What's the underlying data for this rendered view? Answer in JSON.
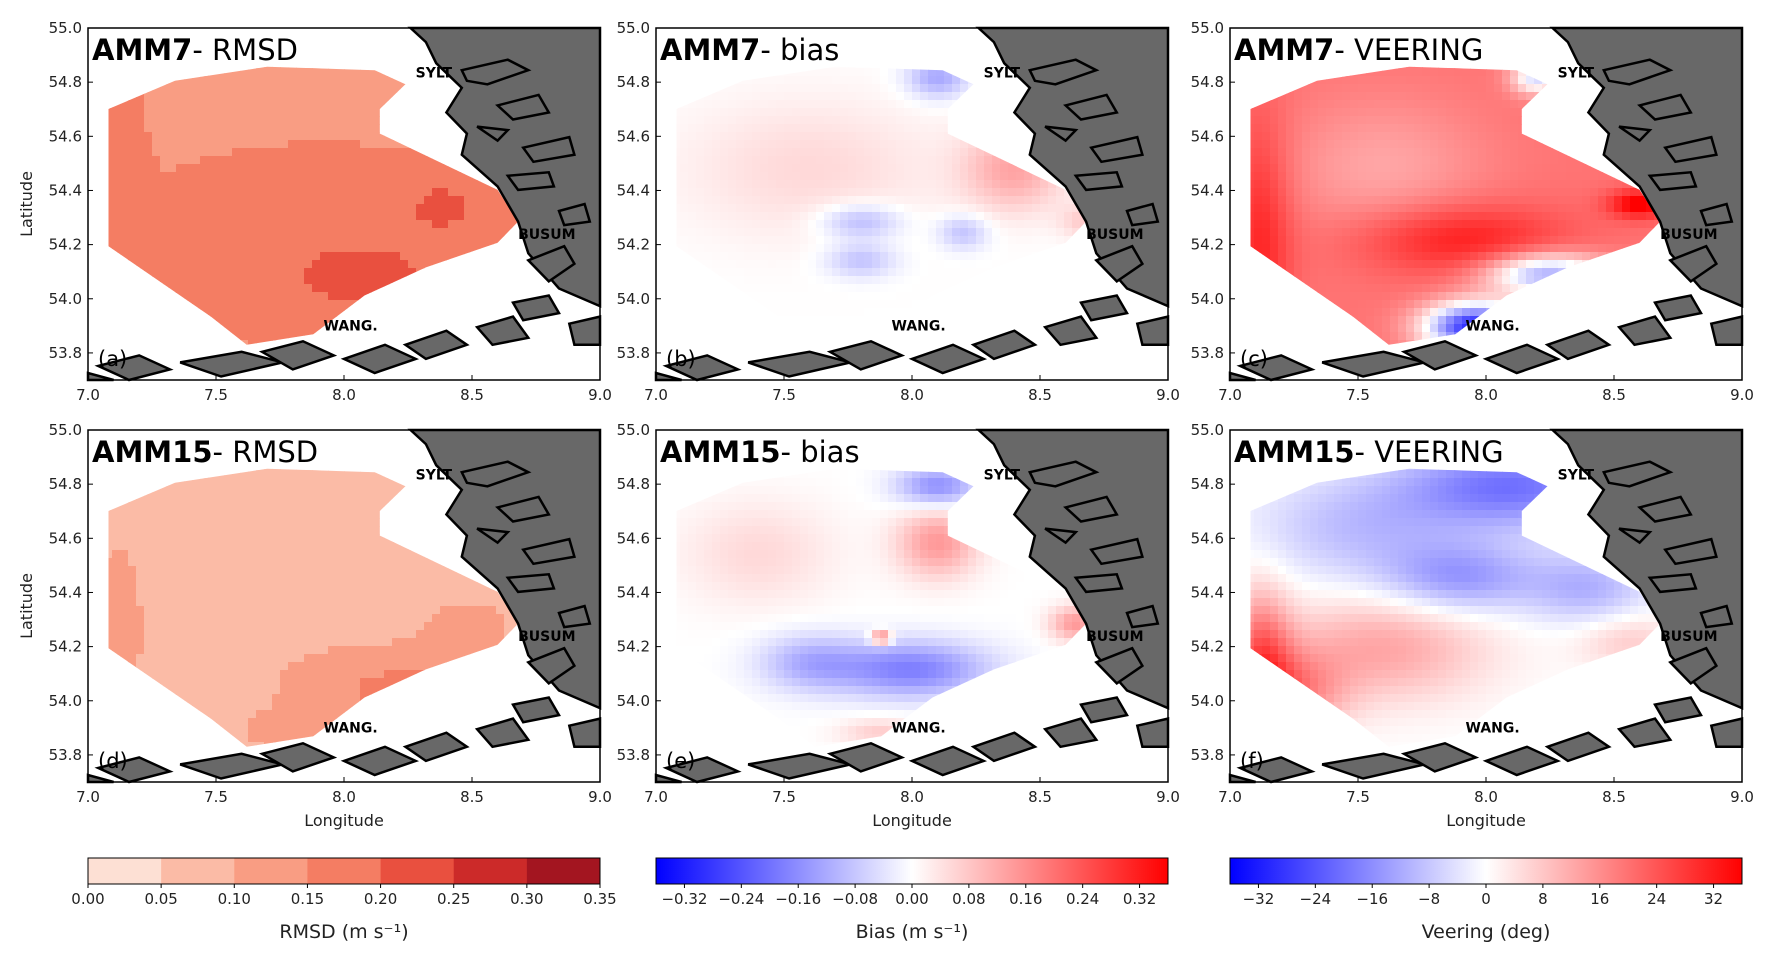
{
  "chart_data": [
    {
      "id": "a",
      "type": "heatmap",
      "panel_label": "(a)",
      "title_model": "AMM7",
      "title_metric": "- RMSD",
      "field": "rmsd",
      "variant": "amm7",
      "colormap": "rmsd",
      "xlim": [
        7.0,
        9.0
      ],
      "ylim": [
        53.7,
        55.0
      ],
      "xticks": [
        "7.0",
        "7.5",
        "8.0",
        "8.5",
        "9.0"
      ],
      "yticks": [
        "53.8",
        "54.0",
        "54.2",
        "54.4",
        "54.6",
        "54.8",
        "55.0"
      ],
      "xlabel": "",
      "ylabel": "Latitude",
      "places": {
        "sylt": "SYLT",
        "busum": "BUSUM",
        "wang": "WANG."
      }
    },
    {
      "id": "b",
      "type": "heatmap",
      "panel_label": "(b)",
      "title_model": "AMM7",
      "title_metric": "- bias",
      "field": "bias",
      "variant": "amm7",
      "colormap": "diverging",
      "xlim": [
        7.0,
        9.0
      ],
      "ylim": [
        53.7,
        55.0
      ],
      "xticks": [
        "7.0",
        "7.5",
        "8.0",
        "8.5",
        "9.0"
      ],
      "yticks": [
        "53.8",
        "54.0",
        "54.2",
        "54.4",
        "54.6",
        "54.8",
        "55.0"
      ],
      "xlabel": "",
      "ylabel": "",
      "places": {
        "sylt": "SYLT",
        "busum": "BUSUM",
        "wang": "WANG."
      }
    },
    {
      "id": "c",
      "type": "heatmap",
      "panel_label": "(c)",
      "title_model": "AMM7",
      "title_metric": "- VEERING",
      "field": "veering",
      "variant": "amm7",
      "colormap": "diverging",
      "xlim": [
        7.0,
        9.0
      ],
      "ylim": [
        53.7,
        55.0
      ],
      "xticks": [
        "7.0",
        "7.5",
        "8.0",
        "8.5",
        "9.0"
      ],
      "yticks": [
        "53.8",
        "54.0",
        "54.2",
        "54.4",
        "54.6",
        "54.8",
        "55.0"
      ],
      "xlabel": "",
      "ylabel": "",
      "places": {
        "sylt": "SYLT",
        "busum": "BUSUM",
        "wang": "WANG."
      }
    },
    {
      "id": "d",
      "type": "heatmap",
      "panel_label": "(d)",
      "title_model": "AMM15",
      "title_metric": "- RMSD",
      "field": "rmsd",
      "variant": "amm15",
      "colormap": "rmsd",
      "xlim": [
        7.0,
        9.0
      ],
      "ylim": [
        53.7,
        55.0
      ],
      "xticks": [
        "7.0",
        "7.5",
        "8.0",
        "8.5",
        "9.0"
      ],
      "yticks": [
        "53.8",
        "54.0",
        "54.2",
        "54.4",
        "54.6",
        "54.8",
        "55.0"
      ],
      "xlabel": "Longitude",
      "ylabel": "Latitude",
      "places": {
        "sylt": "SYLT",
        "busum": "BUSUM",
        "wang": "WANG."
      }
    },
    {
      "id": "e",
      "type": "heatmap",
      "panel_label": "(e)",
      "title_model": "AMM15",
      "title_metric": "- bias",
      "field": "bias",
      "variant": "amm15",
      "colormap": "diverging",
      "xlim": [
        7.0,
        9.0
      ],
      "ylim": [
        53.7,
        55.0
      ],
      "xticks": [
        "7.0",
        "7.5",
        "8.0",
        "8.5",
        "9.0"
      ],
      "yticks": [
        "53.8",
        "54.0",
        "54.2",
        "54.4",
        "54.6",
        "54.8",
        "55.0"
      ],
      "xlabel": "Longitude",
      "ylabel": "",
      "places": {
        "sylt": "SYLT",
        "busum": "BUSUM",
        "wang": "WANG."
      }
    },
    {
      "id": "f",
      "type": "heatmap",
      "panel_label": "(f)",
      "title_model": "AMM15",
      "title_metric": "- VEERING",
      "field": "veering",
      "variant": "amm15",
      "colormap": "diverging",
      "xlim": [
        7.0,
        9.0
      ],
      "ylim": [
        53.7,
        55.0
      ],
      "xticks": [
        "7.0",
        "7.5",
        "8.0",
        "8.5",
        "9.0"
      ],
      "yticks": [
        "53.8",
        "54.0",
        "54.2",
        "54.4",
        "54.6",
        "54.8",
        "55.0"
      ],
      "xlabel": "Longitude",
      "ylabel": "",
      "places": {
        "sylt": "SYLT",
        "busum": "BUSUM",
        "wang": "WANG."
      }
    }
  ],
  "colorbars": [
    {
      "id": "rmsd",
      "type": "discrete",
      "label": "RMSD (m s⁻¹)",
      "range": [
        0.0,
        0.35
      ],
      "bounds": [
        0.0,
        0.05,
        0.1,
        0.15,
        0.2,
        0.25,
        0.3,
        0.35
      ],
      "colors": [
        "#fde0d4",
        "#fbbba6",
        "#f99d83",
        "#f47d63",
        "#e9503f",
        "#cc2a29",
        "#a31520"
      ],
      "tick_labels": [
        "0.00",
        "0.05",
        "0.10",
        "0.15",
        "0.20",
        "0.25",
        "0.30",
        "0.35"
      ],
      "tick_values": [
        0.0,
        0.05,
        0.1,
        0.15,
        0.2,
        0.25,
        0.3,
        0.35
      ]
    },
    {
      "id": "bias",
      "type": "continuous",
      "label": "Bias (m s⁻¹)",
      "range": [
        -0.36,
        0.36
      ],
      "tick_labels": [
        "−0.32",
        "−0.24",
        "−0.16",
        "−0.08",
        "0.00",
        "0.08",
        "0.16",
        "0.24",
        "0.32"
      ],
      "tick_values": [
        -0.32,
        -0.24,
        -0.16,
        -0.08,
        0.0,
        0.08,
        0.16,
        0.24,
        0.32
      ]
    },
    {
      "id": "veering",
      "type": "continuous",
      "label": "Veering (deg)",
      "range": [
        -36,
        36
      ],
      "tick_labels": [
        "−32",
        "−24",
        "−16",
        "−8",
        "0",
        "8",
        "16",
        "24",
        "32"
      ],
      "tick_values": [
        -32,
        -24,
        -16,
        -8,
        0,
        8,
        16,
        24,
        32
      ]
    }
  ],
  "colors": {
    "land": "#686868",
    "coast": "#000000",
    "blue": "#0000ff",
    "red": "#ff0000",
    "white": "#ffffff"
  }
}
